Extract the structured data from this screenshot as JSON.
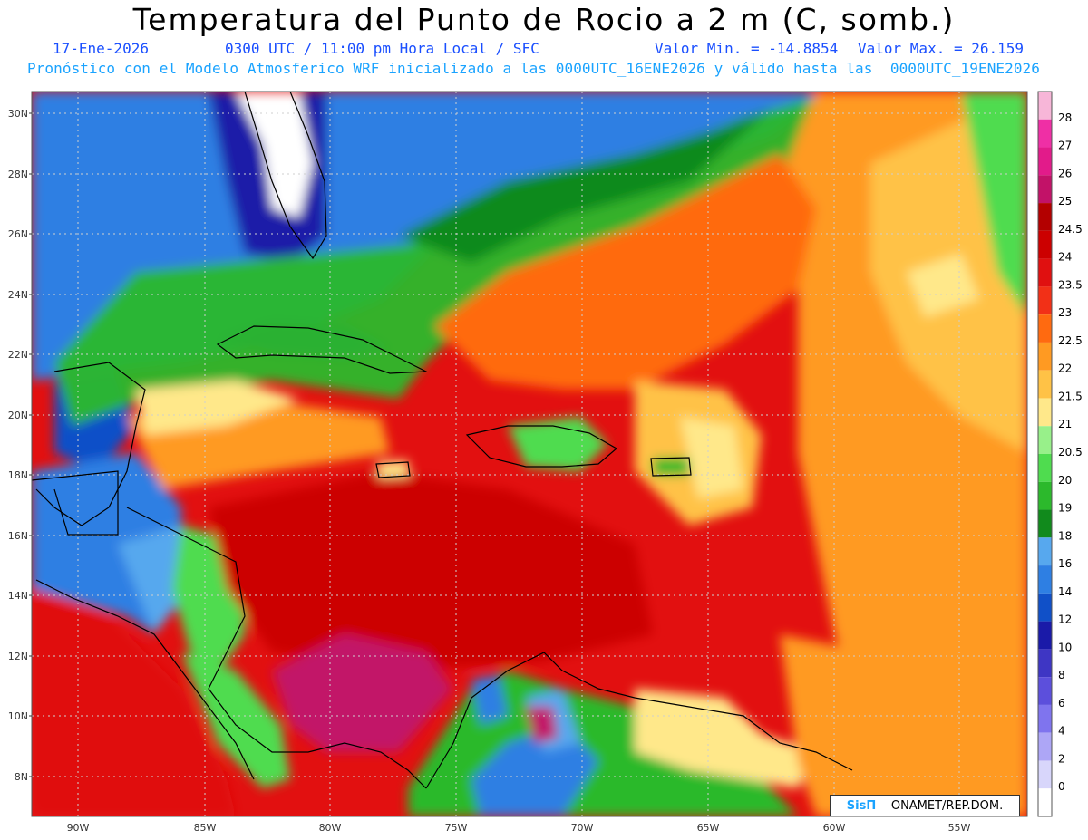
{
  "header": {
    "title": "Temperatura del Punto de Rocio a 2 m (C, somb.)",
    "date": "17-Ene-2026",
    "time": "0300 UTC / 11:00 pm Hora Local / SFC",
    "min": "Valor Min. = -14.8854",
    "max": "Valor Max. = 26.159",
    "model_line": "Pronóstico con el Modelo Atmosferico WRF inicializado a las 0000UTC_16ENE2026 y válido hasta las  0000UTC_19ENE2026"
  },
  "map": {
    "lat_labels": [
      "30N",
      "28N",
      "26N",
      "24N",
      "22N",
      "20N",
      "18N",
      "16N",
      "14N",
      "12N",
      "10N",
      "8N"
    ],
    "lon_labels": [
      "90W",
      "85W",
      "80W",
      "75W",
      "70W",
      "65W",
      "60W",
      "55W"
    ]
  },
  "colorbar": {
    "levels": [
      {
        "label": "28",
        "color": "#f7b6d8"
      },
      {
        "label": "27",
        "color": "#ef2fa5"
      },
      {
        "label": "26",
        "color": "#e21b8a"
      },
      {
        "label": "25",
        "color": "#c21268"
      },
      {
        "label": "24.5",
        "color": "#b30000"
      },
      {
        "label": "24",
        "color": "#cc0000"
      },
      {
        "label": "23.5",
        "color": "#e01010"
      },
      {
        "label": "23",
        "color": "#f23017"
      },
      {
        "label": "22.5",
        "color": "#ff6a10"
      },
      {
        "label": "22",
        "color": "#ff9a22"
      },
      {
        "label": "21.5",
        "color": "#ffc246"
      },
      {
        "label": "21",
        "color": "#ffe88a"
      },
      {
        "label": "20.5",
        "color": "#98f08a"
      },
      {
        "label": "20",
        "color": "#4fdc4f"
      },
      {
        "label": "19",
        "color": "#2cb92c"
      },
      {
        "label": "18",
        "color": "#118a1c"
      },
      {
        "label": "16",
        "color": "#57a8ee"
      },
      {
        "label": "14",
        "color": "#2e7fe3"
      },
      {
        "label": "12",
        "color": "#1050c8"
      },
      {
        "label": "10",
        "color": "#1a1aa8"
      },
      {
        "label": "8",
        "color": "#3e36c4"
      },
      {
        "label": "6",
        "color": "#5c4fdc"
      },
      {
        "label": "4",
        "color": "#7f74ee"
      },
      {
        "label": "2",
        "color": "#ada6f6"
      },
      {
        "label": "0",
        "color": "#d8d6fb"
      }
    ],
    "bottom_color": "#ffffff"
  },
  "credit": {
    "logo": "SisΠ",
    "text": "– ONAMET/REP.DOM."
  }
}
